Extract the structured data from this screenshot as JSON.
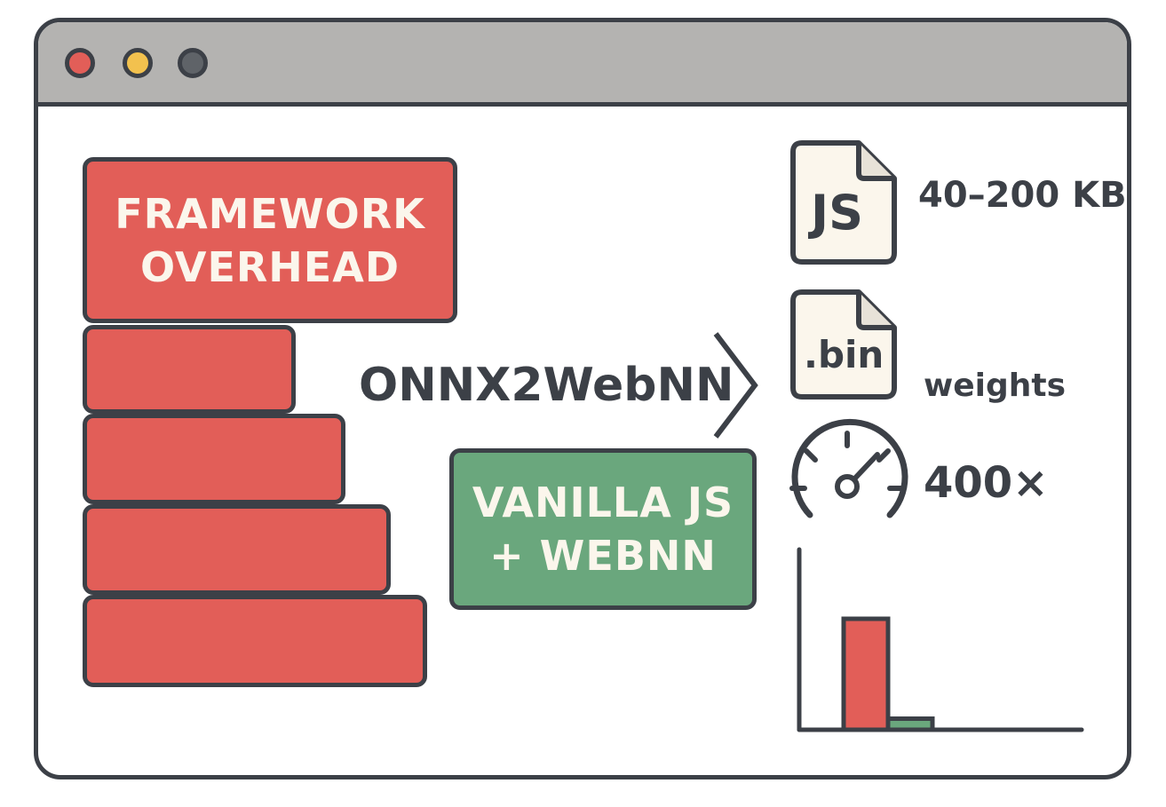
{
  "stack": {
    "top_label_line1": "FRAMEWORK",
    "top_label_line2": "OVERHEAD"
  },
  "arrow_label": "ONNX2WebNN",
  "green_box": {
    "line1": "VANILLA JS",
    "line2": "+ WEBNN"
  },
  "files": [
    {
      "icon_text": "JS",
      "caption": "40–200 KB"
    },
    {
      "icon_text": ".bin",
      "caption": "weights"
    }
  ],
  "speed": {
    "caption": "400×"
  },
  "chart_data": {
    "type": "bar",
    "values": [
      100,
      10
    ],
    "colors": [
      "#e25e58",
      "#6aa77d"
    ]
  },
  "colors": {
    "outline": "#3c4047",
    "red": "#e25e58",
    "green": "#6aa77d",
    "titlebar": "#b4b3b1",
    "dot_red": "#e25e58",
    "dot_yellow": "#f2c14e",
    "dot_gray": "#5f6368",
    "file_fill": "#fbf6ec"
  },
  "icons": [
    "close-dot",
    "minimize-dot",
    "maximize-dot",
    "file-icon",
    "speedometer-icon",
    "chevron-right-icon"
  ]
}
